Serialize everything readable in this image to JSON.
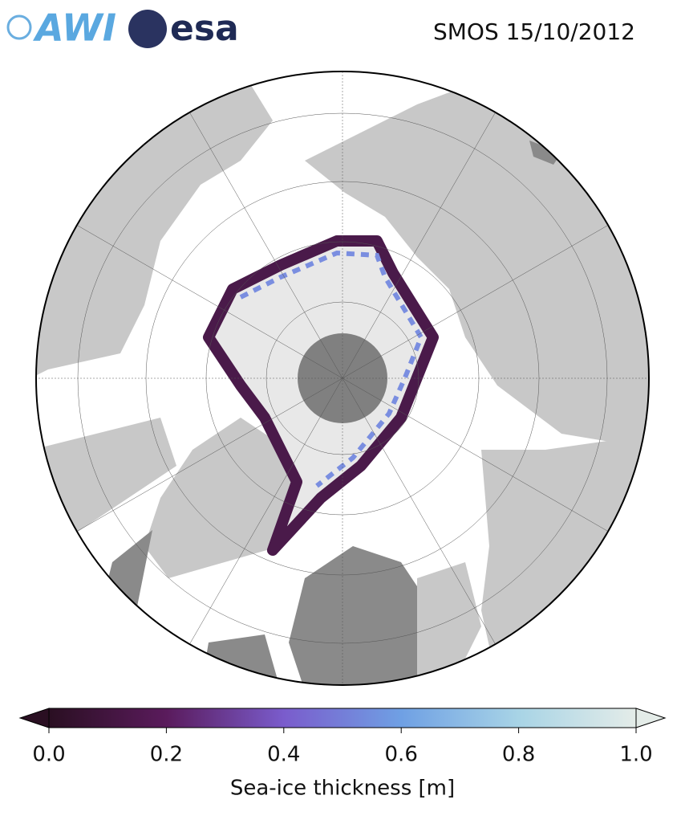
{
  "header": {
    "logos": [
      "AWI",
      "esa"
    ],
    "title": "SMOS 15/10/2012"
  },
  "colorbar": {
    "label": "Sea-ice thickness [m]",
    "lim": [
      0,
      1
    ],
    "ticks": [
      {
        "value": 0,
        "label": "0.0"
      },
      0.2,
      0.4,
      0.6,
      0.8,
      {
        "value": 1,
        "label": "1.0"
      }
    ],
    "colors": [
      "#2a0f22",
      "#5a1b5c",
      "#7a5ccc",
      "#6fa0e4",
      "#a8d4e6",
      "#e4ece8"
    ]
  }
}
